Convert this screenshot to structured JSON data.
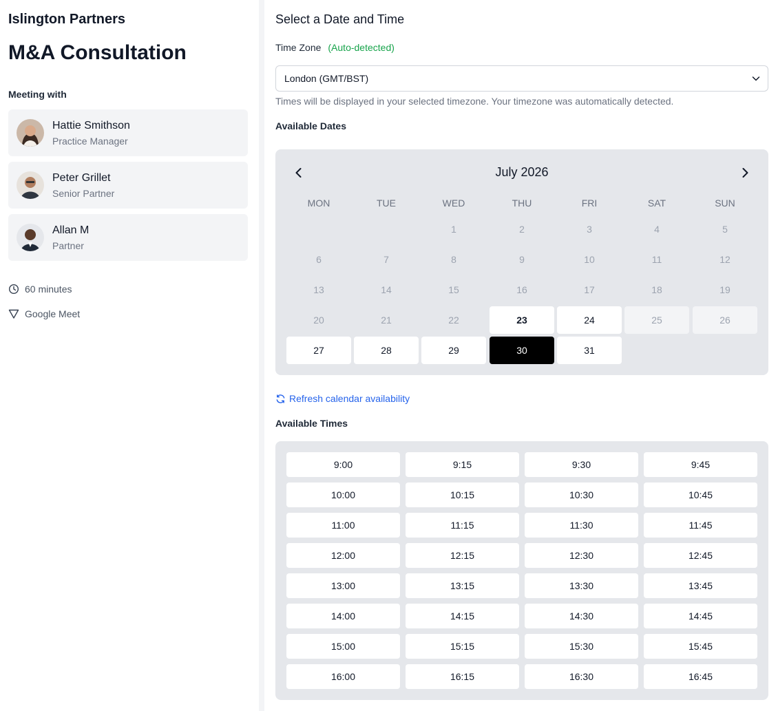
{
  "sidebar": {
    "org_name": "Islington Partners",
    "title": "M&A Consultation",
    "meeting_with_label": "Meeting with",
    "hosts": [
      {
        "name": "Hattie Smithson",
        "role": "Practice Manager"
      },
      {
        "name": "Peter Grillet",
        "role": "Senior Partner"
      },
      {
        "name": "Allan M",
        "role": "Partner"
      }
    ],
    "duration": "60 minutes",
    "location": "Google Meet"
  },
  "main": {
    "section_title": "Select a Date and Time",
    "timezone": {
      "label": "Time Zone",
      "auto_label": "(Auto-detected)",
      "selected": "London (GMT/BST)",
      "help": "Times will be displayed in your selected timezone. Your timezone was automatically detected."
    },
    "dates_label": "Available Dates",
    "calendar": {
      "month_label": "July 2026",
      "weekdays": [
        "MON",
        "TUE",
        "WED",
        "THU",
        "FRI",
        "SAT",
        "SUN"
      ],
      "first_weekday_index": 2,
      "days_in_month": 31,
      "available_days": [
        23,
        24,
        27,
        28,
        29,
        30,
        31
      ],
      "unavailable_boxed_days": [
        25,
        26
      ],
      "today": 23,
      "selected": 30
    },
    "refresh_label": "Refresh calendar availability",
    "times_label": "Available Times",
    "times": [
      "9:00",
      "9:15",
      "9:30",
      "9:45",
      "10:00",
      "10:15",
      "10:30",
      "10:45",
      "11:00",
      "11:15",
      "11:30",
      "11:45",
      "12:00",
      "12:15",
      "12:30",
      "12:45",
      "13:00",
      "13:15",
      "13:30",
      "13:45",
      "14:00",
      "14:15",
      "14:30",
      "14:45",
      "15:00",
      "15:15",
      "15:30",
      "15:45",
      "16:00",
      "16:15",
      "16:30",
      "16:45"
    ]
  },
  "colors": {
    "accent_auto": "#16a34a",
    "link": "#2563eb",
    "selected_day": "#000000"
  }
}
